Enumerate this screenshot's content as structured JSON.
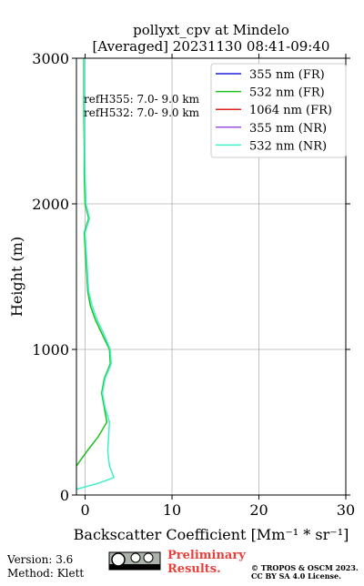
{
  "chart_data": {
    "type": "line",
    "title": [
      "pollyxt_cpv at Mindelo",
      "[Averaged] 20231130 08:41-09:40"
    ],
    "x_label": "Backscatter Coefficient [Mm⁻¹ * sr⁻¹]",
    "y_label": "Height (m)",
    "annotations": [
      "refH355:  7.0- 9.0 km",
      "refH532:  7.0- 9.0 km"
    ],
    "xlim": [
      -1,
      30
    ],
    "xticks": [
      0,
      10,
      20,
      30
    ],
    "ylim": [
      0,
      3000
    ],
    "yticks": [
      0,
      1000,
      2000,
      3000
    ],
    "grid": true,
    "legend": "upper right",
    "y": [
      40,
      80,
      120,
      200,
      300,
      400,
      500,
      600,
      700,
      800,
      900,
      1000,
      1100,
      1200,
      1300,
      1400,
      1500,
      1600,
      1700,
      1800,
      1900,
      2000,
      2200,
      2400,
      2600,
      2800,
      3000
    ],
    "series": [
      {
        "name": "355 nm (FR)",
        "color": "#1f1fd6",
        "values": [
          null,
          null,
          null,
          null,
          null,
          null,
          null,
          null,
          null,
          null,
          null,
          null,
          null,
          null,
          null,
          null,
          null,
          null,
          null,
          null,
          null,
          null,
          null,
          null,
          null,
          null,
          null
        ]
      },
      {
        "name": "532 nm (FR)",
        "color": "#1ec01e",
        "values": [
          null,
          null,
          null,
          -1.0,
          0.2,
          1.5,
          2.5,
          2.2,
          1.9,
          2.2,
          2.9,
          2.8,
          2.0,
          1.2,
          0.6,
          0.3,
          0.2,
          0.1,
          0.0,
          -0.1,
          0.4,
          0.0,
          -0.1,
          -0.1,
          -0.15,
          -0.15,
          -0.15
        ]
      },
      {
        "name": "1064 nm (FR)",
        "color": "#e0201e",
        "values": [
          null,
          null,
          null,
          null,
          null,
          null,
          null,
          null,
          null,
          null,
          null,
          null,
          null,
          null,
          null,
          null,
          null,
          null,
          null,
          null,
          null,
          null,
          null,
          null,
          null,
          null,
          null
        ]
      },
      {
        "name": "355 nm (NR)",
        "color": "#a050e0",
        "values": [
          null,
          null,
          null,
          null,
          null,
          null,
          null,
          null,
          null,
          null,
          null,
          null,
          null,
          null,
          null,
          null,
          null,
          null,
          null,
          null,
          null,
          null,
          null,
          null,
          null,
          null,
          null
        ]
      },
      {
        "name": "532 nm (NR)",
        "color": "#40f0c8",
        "values": [
          -1.0,
          1.5,
          3.3,
          2.8,
          2.6,
          2.7,
          2.8,
          2.3,
          2.0,
          2.3,
          3.0,
          2.9,
          2.2,
          1.4,
          0.8,
          0.4,
          0.3,
          0.2,
          0.1,
          0.0,
          0.5,
          0.1,
          0.0,
          -0.05,
          -0.1,
          -0.1,
          -0.1
        ]
      }
    ]
  },
  "footer": {
    "version": "Version: 3.6",
    "method": "Method: Klett",
    "preliminary": [
      "Preliminary",
      "Results."
    ],
    "copyright": [
      "© TROPOS & OSCM 2023.",
      "CC BY SA 4.0 License."
    ]
  }
}
